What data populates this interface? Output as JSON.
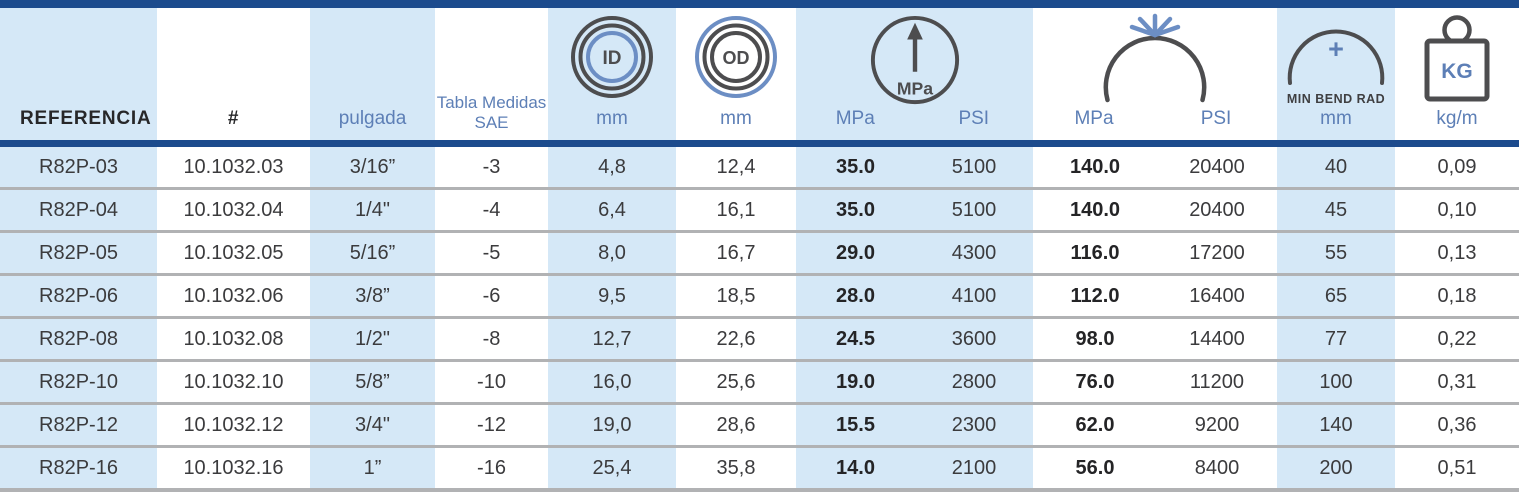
{
  "colors": {
    "navy_line": "#1c4b8d",
    "light_blue_column": "#d5e8f7",
    "row_separator_gray": "#b1b2b4",
    "header_label_blue": "#5d7fb6",
    "icon_dark": "#4d4d4f",
    "icon_blue": "#6c8ec4",
    "data_text": "#3b3b3d"
  },
  "header": {
    "referencia": "REFERENCIA",
    "numero": "#",
    "pulgada": "pulgada",
    "sae_line1": "Tabla Medidas",
    "sae_line2": "SAE",
    "id_icon": "ID",
    "od_icon": "OD",
    "gauge_icon": "MPa",
    "kg_icon": "KG",
    "plus_icon": "+",
    "min_bend_caption": "MIN BEND RAD",
    "units": {
      "id": "mm",
      "od": "mm",
      "wp_mpa": "MPa",
      "wp_psi": "PSI",
      "bp_mpa": "MPa",
      "bp_psi": "PSI",
      "bend": "mm",
      "weight": "kg/m"
    }
  },
  "columns": [
    {
      "key": "referencia",
      "blue": true,
      "bold": false
    },
    {
      "key": "numero",
      "blue": false,
      "bold": false
    },
    {
      "key": "pulgada",
      "blue": true,
      "bold": false
    },
    {
      "key": "sae",
      "blue": false,
      "bold": false
    },
    {
      "key": "id_mm",
      "blue": true,
      "bold": false
    },
    {
      "key": "od_mm",
      "blue": false,
      "bold": false
    },
    {
      "key": "wp_mpa",
      "blue": true,
      "bold": true
    },
    {
      "key": "wp_psi",
      "blue": true,
      "bold": false
    },
    {
      "key": "bp_mpa",
      "blue": false,
      "bold": true
    },
    {
      "key": "bp_psi",
      "blue": false,
      "bold": false
    },
    {
      "key": "bend_mm",
      "blue": true,
      "bold": false
    },
    {
      "key": "weight_kgm",
      "blue": false,
      "bold": false
    }
  ],
  "rows": [
    {
      "referencia": "R82P-03",
      "numero": "10.1032.03",
      "pulgada": "3/16”",
      "sae": "-3",
      "id_mm": "4,8",
      "od_mm": "12,4",
      "wp_mpa": "35.0",
      "wp_psi": "5100",
      "bp_mpa": "140.0",
      "bp_psi": "20400",
      "bend_mm": "40",
      "weight_kgm": "0,09"
    },
    {
      "referencia": "R82P-04",
      "numero": "10.1032.04",
      "pulgada": "1/4\"",
      "sae": "-4",
      "id_mm": "6,4",
      "od_mm": "16,1",
      "wp_mpa": "35.0",
      "wp_psi": "5100",
      "bp_mpa": "140.0",
      "bp_psi": "20400",
      "bend_mm": "45",
      "weight_kgm": "0,10"
    },
    {
      "referencia": "R82P-05",
      "numero": "10.1032.05",
      "pulgada": "5/16”",
      "sae": "-5",
      "id_mm": "8,0",
      "od_mm": "16,7",
      "wp_mpa": "29.0",
      "wp_psi": "4300",
      "bp_mpa": "116.0",
      "bp_psi": "17200",
      "bend_mm": "55",
      "weight_kgm": "0,13"
    },
    {
      "referencia": "R82P-06",
      "numero": "10.1032.06",
      "pulgada": "3/8”",
      "sae": "-6",
      "id_mm": "9,5",
      "od_mm": "18,5",
      "wp_mpa": "28.0",
      "wp_psi": "4100",
      "bp_mpa": "112.0",
      "bp_psi": "16400",
      "bend_mm": "65",
      "weight_kgm": "0,18"
    },
    {
      "referencia": "R82P-08",
      "numero": "10.1032.08",
      "pulgada": "1/2\"",
      "sae": "-8",
      "id_mm": "12,7",
      "od_mm": "22,6",
      "wp_mpa": "24.5",
      "wp_psi": "3600",
      "bp_mpa": "98.0",
      "bp_psi": "14400",
      "bend_mm": "77",
      "weight_kgm": "0,22"
    },
    {
      "referencia": "R82P-10",
      "numero": "10.1032.10",
      "pulgada": "5/8”",
      "sae": "-10",
      "id_mm": "16,0",
      "od_mm": "25,6",
      "wp_mpa": "19.0",
      "wp_psi": "2800",
      "bp_mpa": "76.0",
      "bp_psi": "11200",
      "bend_mm": "100",
      "weight_kgm": "0,31"
    },
    {
      "referencia": "R82P-12",
      "numero": "10.1032.12",
      "pulgada": "3/4\"",
      "sae": "-12",
      "id_mm": "19,0",
      "od_mm": "28,6",
      "wp_mpa": "15.5",
      "wp_psi": "2300",
      "bp_mpa": "62.0",
      "bp_psi": "9200",
      "bend_mm": "140",
      "weight_kgm": "0,36"
    },
    {
      "referencia": "R82P-16",
      "numero": "10.1032.16",
      "pulgada": "1”",
      "sae": "-16",
      "id_mm": "25,4",
      "od_mm": "35,8",
      "wp_mpa": "14.0",
      "wp_psi": "2100",
      "bp_mpa": "56.0",
      "bp_psi": "8400",
      "bend_mm": "200",
      "weight_kgm": "0,51"
    }
  ]
}
